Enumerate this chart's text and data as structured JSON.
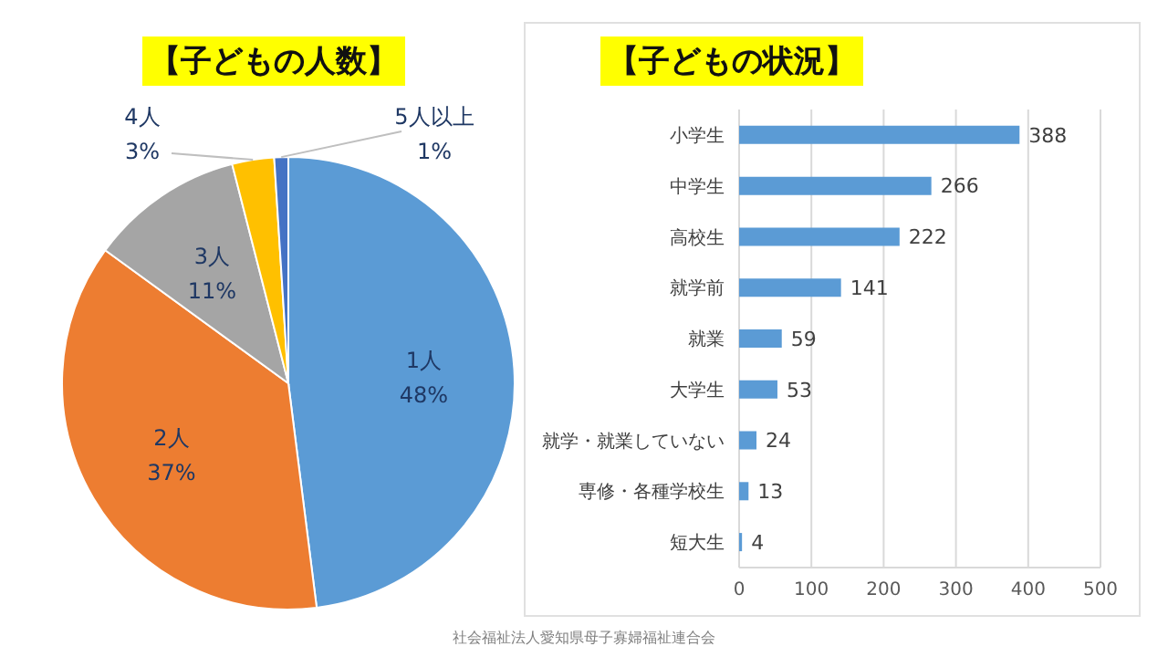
{
  "chart_data": [
    {
      "type": "pie",
      "title": "【子どもの人数】",
      "categories": [
        "1人",
        "2人",
        "3人",
        "4人",
        "5人以上"
      ],
      "values": [
        48,
        37,
        11,
        3,
        1
      ],
      "colors": [
        "#5b9bd5",
        "#ed7d31",
        "#a5a5a5",
        "#ffc000",
        "#4472c4"
      ],
      "value_labels": [
        "48%",
        "37%",
        "11%",
        "3%",
        "1%"
      ]
    },
    {
      "type": "bar",
      "orientation": "horizontal",
      "title": "【子どもの状況】",
      "categories": [
        "小学生",
        "中学生",
        "高校生",
        "就学前",
        "就業",
        "大学生",
        "就学・就業していない",
        "専修・各種学校生",
        "短大生"
      ],
      "values": [
        388,
        266,
        222,
        141,
        59,
        53,
        24,
        13,
        4
      ],
      "color": "#5b9bd5",
      "xlim": [
        0,
        500
      ],
      "xticks": [
        0,
        100,
        200,
        300,
        400,
        500
      ],
      "grid": "x",
      "data_labels": true,
      "annotations": [
        "社会福祉法人愛知県母子寡婦福祉連合会"
      ]
    }
  ]
}
